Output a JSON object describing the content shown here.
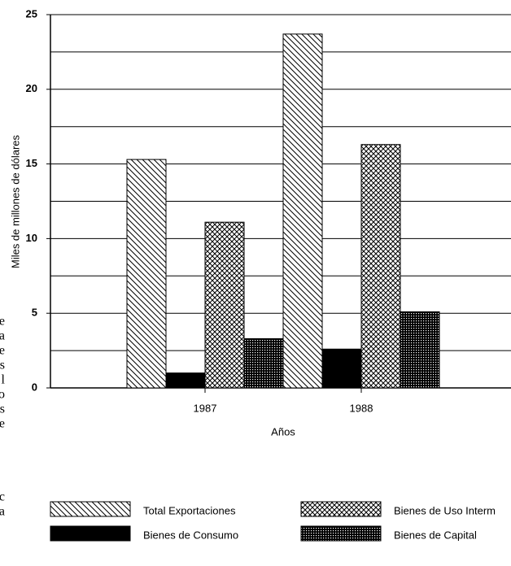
{
  "chart_data": {
    "type": "bar",
    "y_label": "Miles de millones de dólares",
    "x_label": "Años",
    "categories": [
      "1987",
      "1988"
    ],
    "series": [
      {
        "name": "Total Exportaciones",
        "color": "#000000",
        "pattern": "diagonal",
        "values": [
          15.3,
          23.7
        ]
      },
      {
        "name": "Bienes de Consumo",
        "color": "#000000",
        "pattern": "solid",
        "values": [
          1.0,
          2.6
        ]
      },
      {
        "name": "Bienes de Uso Interm",
        "color": "#000000",
        "pattern": "crosshatch",
        "values": [
          11.1,
          16.3
        ]
      },
      {
        "name": "Bienes de Capital",
        "color": "#000000",
        "pattern": "grid",
        "values": [
          3.3,
          5.1
        ]
      }
    ],
    "ylim": [
      0,
      25
    ],
    "yticks": [
      0,
      5,
      10,
      15,
      20,
      25
    ],
    "minor_yticks": [
      2.5,
      7.5,
      12.5,
      17.5,
      22.5
    ],
    "grid": true,
    "margin_fragments": [
      "e",
      "a",
      "e",
      "s",
      "l",
      "o",
      "s",
      "e",
      "c",
      "a"
    ]
  }
}
